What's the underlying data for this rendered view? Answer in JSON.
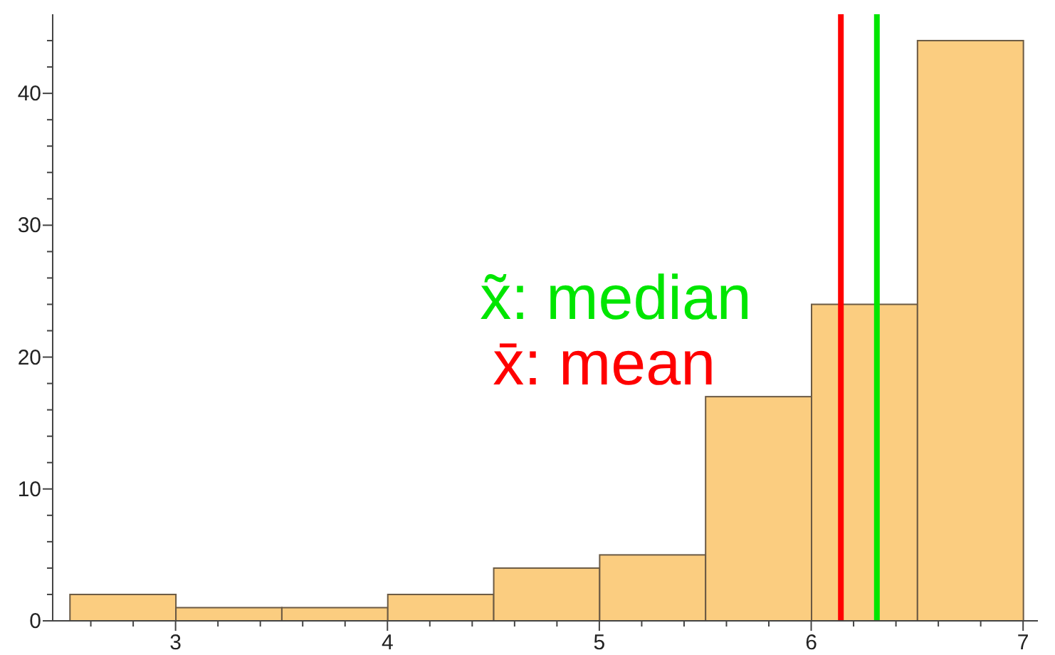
{
  "chart_data": {
    "type": "histogram",
    "bins": [
      2.5,
      3,
      3.5,
      4,
      4.5,
      5,
      5.5,
      6,
      6.5,
      7
    ],
    "values": [
      2,
      1,
      1,
      2,
      4,
      5,
      17,
      24,
      44
    ],
    "color": "#fbcd80",
    "xlim": [
      2.42,
      7.07
    ],
    "xticks": [
      {
        "value": 2.6,
        "label": null
      },
      {
        "value": 2.8,
        "label": null
      },
      3,
      {
        "value": 3.2,
        "label": null
      },
      {
        "value": 3.4,
        "label": null
      },
      {
        "value": 3.6,
        "label": null
      },
      {
        "value": 3.8,
        "label": null
      },
      4,
      {
        "value": 4.2,
        "label": null
      },
      {
        "value": 4.4,
        "label": null
      },
      {
        "value": 4.6,
        "label": null
      },
      {
        "value": 4.8,
        "label": null
      },
      5,
      {
        "value": 5.2,
        "label": null
      },
      {
        "value": 5.4,
        "label": null
      },
      {
        "value": 5.6,
        "label": null
      },
      {
        "value": 5.8,
        "label": null
      },
      6,
      {
        "value": 6.2,
        "label": null
      },
      {
        "value": 6.4,
        "label": null
      },
      {
        "value": 6.6,
        "label": null
      },
      {
        "value": 6.8,
        "label": null
      },
      7
    ],
    "ylim": [
      0,
      46
    ],
    "yticks": [
      0,
      {
        "value": 2,
        "label": null
      },
      {
        "value": 4,
        "label": null
      },
      {
        "value": 6,
        "label": null
      },
      {
        "value": 8,
        "label": null
      },
      10,
      {
        "value": 12,
        "label": null
      },
      {
        "value": 14,
        "label": null
      },
      {
        "value": 16,
        "label": null
      },
      {
        "value": 18,
        "label": null
      },
      20,
      {
        "value": 22,
        "label": null
      },
      {
        "value": 24,
        "label": null
      },
      {
        "value": 26,
        "label": null
      },
      {
        "value": 28,
        "label": null
      },
      30,
      {
        "value": 32,
        "label": null
      },
      {
        "value": 34,
        "label": null
      },
      {
        "value": 36,
        "label": null
      },
      {
        "value": 38,
        "label": null
      },
      40,
      {
        "value": 42,
        "label": null
      },
      {
        "value": 44,
        "label": null
      }
    ],
    "ref_lines": [
      {
        "axis": "x",
        "value": 6.31,
        "label": "x̃: median",
        "color": "#00e600"
      },
      {
        "axis": "x",
        "value": 6.14,
        "label": "x̄: mean",
        "color": "#ff0000"
      }
    ]
  }
}
